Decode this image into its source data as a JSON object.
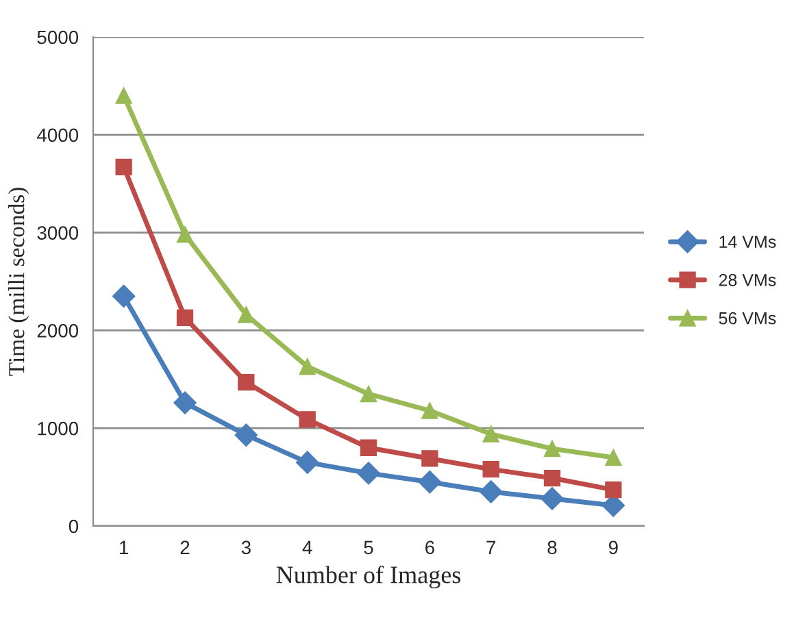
{
  "chart_data": {
    "type": "line",
    "xlabel": "Number of Images",
    "ylabel": "Time (milli seconds)",
    "categories": [
      "1",
      "2",
      "3",
      "4",
      "5",
      "6",
      "7",
      "8",
      "9"
    ],
    "series": [
      {
        "name": "14 VMs",
        "color": "#4a7ebb",
        "marker": "diamond",
        "values": [
          2350,
          1260,
          930,
          650,
          540,
          450,
          350,
          280,
          210
        ]
      },
      {
        "name": "28 VMs",
        "color": "#be4b48",
        "marker": "square",
        "values": [
          3670,
          2130,
          1470,
          1090,
          800,
          690,
          580,
          490,
          370
        ]
      },
      {
        "name": "56 VMs",
        "color": "#98b954",
        "marker": "triangle",
        "values": [
          4400,
          2980,
          2160,
          1630,
          1350,
          1180,
          940,
          790,
          700
        ]
      }
    ],
    "ylim": [
      0,
      5000
    ],
    "yticks": [
      0,
      1000,
      2000,
      3000,
      4000,
      5000
    ],
    "grid": "y",
    "legend": "right",
    "line_style": "solid"
  }
}
